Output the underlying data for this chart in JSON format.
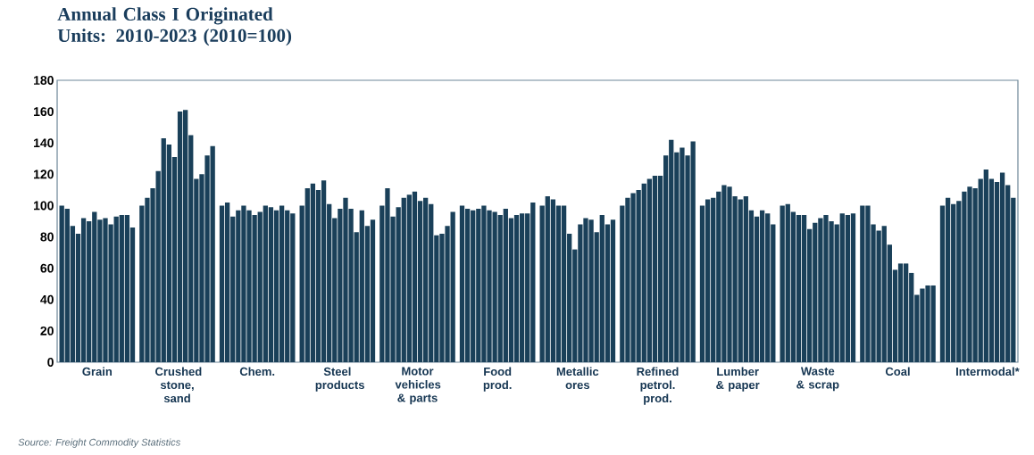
{
  "chart_data": {
    "type": "bar",
    "title": "Annual Class I Originated Units: 2010-2023 (2010=100)",
    "categories": [
      "Grain",
      "Crushed stone, sand",
      "Chem.",
      "Steel products",
      "Motor vehicles & parts",
      "Food prod.",
      "Metallic ores",
      "Refined petrol. prod.",
      "Lumber & paper",
      "Waste & scrap",
      "Coal",
      "Intermodal*"
    ],
    "series": [
      {
        "color": "#1a4059",
        "values": [
          100,
          100,
          100,
          100,
          100,
          100,
          100,
          100,
          100,
          100,
          100,
          100
        ]
      },
      {
        "color": "#1a4059",
        "values": [
          98,
          105,
          102,
          111,
          111,
          98,
          106,
          105,
          104,
          101,
          100,
          105
        ]
      },
      {
        "color": "#1a4059",
        "values": [
          87,
          111,
          93,
          114,
          93,
          97,
          104,
          108,
          105,
          96,
          88,
          101
        ]
      },
      {
        "color": "#1a4059",
        "values": [
          82,
          122,
          97,
          110,
          99,
          98,
          100,
          110,
          109,
          94,
          84,
          103
        ]
      },
      {
        "color": "#1a4059",
        "values": [
          92,
          143,
          100,
          116,
          105,
          100,
          100,
          114,
          113,
          94,
          87,
          109
        ]
      },
      {
        "color": "#1a4059",
        "values": [
          90,
          139,
          97,
          101,
          107,
          97,
          82,
          117,
          112,
          85,
          75,
          112
        ]
      },
      {
        "color": "#1a4059",
        "values": [
          96,
          131,
          94,
          92,
          109,
          96,
          72,
          119,
          106,
          89,
          59,
          111
        ]
      },
      {
        "color": "#1a4059",
        "values": [
          91,
          160,
          96,
          98,
          103,
          94,
          88,
          119,
          104,
          92,
          63,
          117
        ]
      },
      {
        "color": "#1a4059",
        "values": [
          92,
          161,
          100,
          105,
          105,
          98,
          92,
          132,
          106,
          94,
          63,
          123
        ]
      },
      {
        "color": "#1a4059",
        "values": [
          88,
          145,
          99,
          98,
          101,
          92,
          91,
          142,
          97,
          90,
          57,
          117
        ]
      },
      {
        "color": "#1a4059",
        "values": [
          93,
          117,
          97,
          83,
          81,
          94,
          83,
          134,
          93,
          88,
          43,
          115
        ]
      },
      {
        "color": "#1a4059",
        "values": [
          94,
          120,
          100,
          97,
          82,
          95,
          94,
          137,
          97,
          95,
          47,
          121
        ]
      },
      {
        "color": "#1a4059",
        "values": [
          94,
          132,
          97,
          87,
          87,
          95,
          88,
          132,
          95,
          94,
          49,
          113
        ]
      },
      {
        "color": "#1a4059",
        "values": [
          86,
          138,
          95,
          91,
          96,
          102,
          91,
          141,
          88,
          95,
          49,
          105
        ]
      }
    ],
    "ylim": [
      0,
      180
    ],
    "yticks": [
      0,
      20,
      40,
      60,
      80,
      100,
      120,
      140,
      160,
      180
    ],
    "annotations": [
      "Source: Freight Commodity Statistics"
    ]
  }
}
